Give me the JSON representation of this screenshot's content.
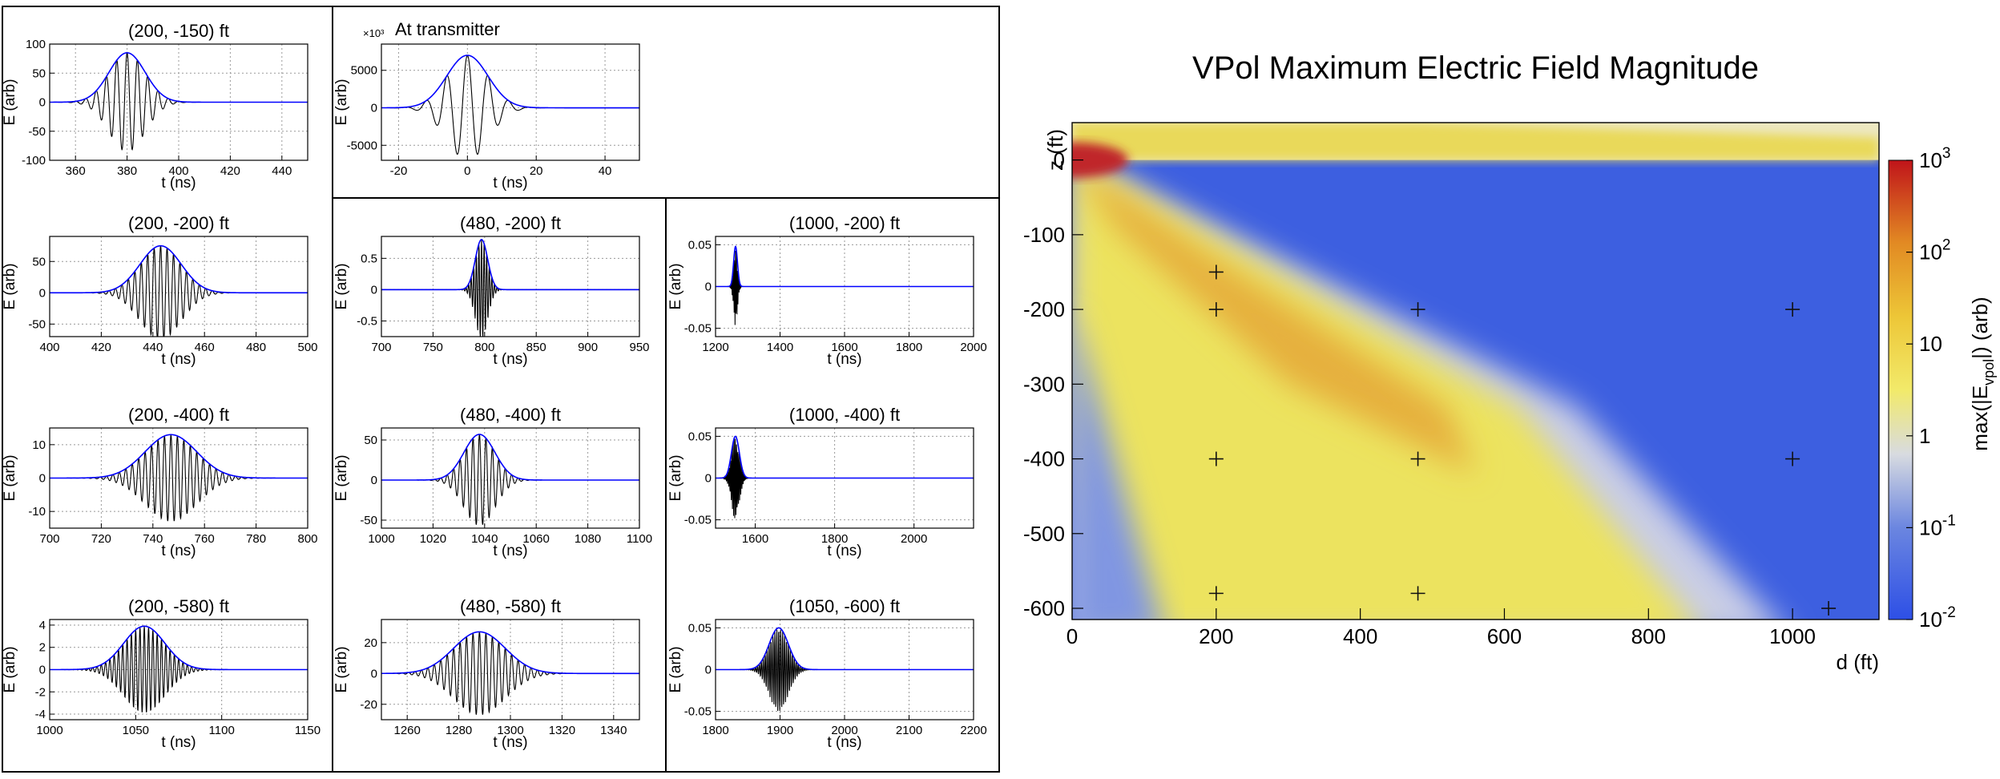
{
  "chart_data": [
    {
      "type": "line",
      "title": "(200, -150) ft",
      "xlabel": "t (ns)",
      "ylabel": "E (arb)",
      "xlim": [
        350,
        450
      ],
      "ylim": [
        -100,
        100
      ],
      "xticks": [
        360,
        380,
        400,
        420,
        440
      ],
      "yticks": [
        -100,
        -50,
        0,
        50,
        100
      ],
      "center": 380,
      "width": 7,
      "amp": 85,
      "period": 4
    },
    {
      "type": "line",
      "title": "(200, -200) ft",
      "xlabel": "t (ns)",
      "ylabel": "E (arb)",
      "xlim": [
        400,
        500
      ],
      "ylim": [
        -70,
        90
      ],
      "xticks": [
        400,
        420,
        440,
        460,
        480,
        500
      ],
      "yticks": [
        -50,
        0,
        50
      ],
      "center": 443,
      "width": 8,
      "amp": 75,
      "period": 2.5
    },
    {
      "type": "line",
      "title": "(200, -400) ft",
      "xlabel": "t (ns)",
      "ylabel": "E (arb)",
      "xlim": [
        700,
        800
      ],
      "ylim": [
        -15,
        15
      ],
      "xticks": [
        700,
        720,
        740,
        760,
        780,
        800
      ],
      "yticks": [
        -10,
        0,
        10
      ],
      "center": 747,
      "width": 10,
      "amp": 13,
      "period": 2.5
    },
    {
      "type": "line",
      "title": "(200, -580) ft",
      "xlabel": "t (ns)",
      "ylabel": "E (arb)",
      "xlim": [
        1000,
        1150
      ],
      "ylim": [
        -4.5,
        4.5
      ],
      "xticks": [
        1000,
        1050,
        1100,
        1150
      ],
      "yticks": [
        -4,
        -2,
        0,
        2,
        4
      ],
      "center": 1055,
      "width": 12,
      "amp": 3.9,
      "period": 2.5
    },
    {
      "type": "line",
      "title": "At transmitter",
      "exponent": "×10³",
      "xlabel": "t (ns)",
      "ylabel": "E (arb)",
      "xlim": [
        -25,
        50
      ],
      "ylim": [
        -7000,
        8500
      ],
      "xticks": [
        -20,
        0,
        20,
        40
      ],
      "yticks": [
        -5000,
        0,
        5000
      ],
      "center": 0,
      "width": 6,
      "amp": 7000,
      "period": 6
    },
    {
      "type": "line",
      "title": "(480, -200) ft",
      "xlabel": "t (ns)",
      "ylabel": "E (arb)",
      "xlim": [
        700,
        950
      ],
      "ylim": [
        -0.75,
        0.85
      ],
      "xticks": [
        700,
        750,
        800,
        850,
        900,
        950
      ],
      "yticks": [
        -0.5,
        0,
        0.5
      ],
      "center": 797,
      "width": 6,
      "amp": 0.8,
      "period": 2.5
    },
    {
      "type": "line",
      "title": "(480, -400) ft",
      "xlabel": "t (ns)",
      "ylabel": "E (arb)",
      "xlim": [
        1000,
        1100
      ],
      "ylim": [
        -60,
        65
      ],
      "xticks": [
        1000,
        1020,
        1040,
        1060,
        1080,
        1100
      ],
      "yticks": [
        -50,
        0,
        50
      ],
      "center": 1038,
      "width": 6,
      "amp": 57,
      "period": 2.5
    },
    {
      "type": "line",
      "title": "(480, -580) ft",
      "xlabel": "t (ns)",
      "ylabel": "E (arb)",
      "xlim": [
        1250,
        1350
      ],
      "ylim": [
        -30,
        35
      ],
      "xticks": [
        1260,
        1280,
        1300,
        1320,
        1340
      ],
      "yticks": [
        -20,
        0,
        20
      ],
      "center": 1288,
      "width": 10,
      "amp": 27,
      "period": 2.5
    },
    {
      "type": "line",
      "title": "(1000, -200) ft",
      "xlabel": "t (ns)",
      "ylabel": "E (arb)",
      "xlim": [
        1200,
        2000
      ],
      "ylim": [
        -0.06,
        0.06
      ],
      "xticks": [
        1200,
        1400,
        1600,
        1800,
        2000
      ],
      "yticks": [
        -0.05,
        0,
        0.05
      ],
      "center": 1262,
      "width": 6,
      "amp": 0.048,
      "period": 3
    },
    {
      "type": "line",
      "title": "(1000, -400) ft",
      "xlabel": "t (ns)",
      "ylabel": "E (arb)",
      "xlim": [
        1500,
        2150
      ],
      "ylim": [
        -0.06,
        0.06
      ],
      "xticks": [
        1600,
        1800,
        2000
      ],
      "yticks": [
        -0.05,
        0,
        0.05
      ],
      "center": 1550,
      "width": 10,
      "amp": 0.05,
      "period": 3
    },
    {
      "type": "line",
      "title": "(1050, -600) ft",
      "xlabel": "t (ns)",
      "ylabel": "E (arb)",
      "xlim": [
        1800,
        2200
      ],
      "ylim": [
        -0.06,
        0.06
      ],
      "xticks": [
        1800,
        1900,
        2000,
        2100,
        2200
      ],
      "yticks": [
        -0.05,
        0,
        0.05
      ],
      "center": 1898,
      "width": 15,
      "amp": 0.05,
      "period": 3
    },
    {
      "type": "heatmap",
      "title": "VPol Maximum Electric Field Magnitude",
      "xlabel": "d (ft)",
      "ylabel": "z (ft)",
      "zlabel": "max(|E_vpol|) (arb)",
      "xlim": [
        0,
        1120
      ],
      "ylim": [
        -615,
        50
      ],
      "xticks": [
        0,
        200,
        400,
        600,
        800,
        1000
      ],
      "yticks": [
        0,
        -100,
        -200,
        -300,
        -400,
        -500,
        -600
      ],
      "colorbar_ticks": [
        "10^-2",
        "10^-1",
        "1",
        "10",
        "10^2",
        "10^3"
      ],
      "markers": [
        [
          200,
          -150
        ],
        [
          200,
          -200
        ],
        [
          200,
          -400
        ],
        [
          200,
          -580
        ],
        [
          480,
          -200
        ],
        [
          480,
          -400
        ],
        [
          480,
          -580
        ],
        [
          1000,
          -200
        ],
        [
          1000,
          -400
        ],
        [
          1050,
          -600
        ]
      ]
    }
  ],
  "colors": {
    "envelope": "#0000ff",
    "trace": "#000000",
    "grid": "#888888"
  }
}
